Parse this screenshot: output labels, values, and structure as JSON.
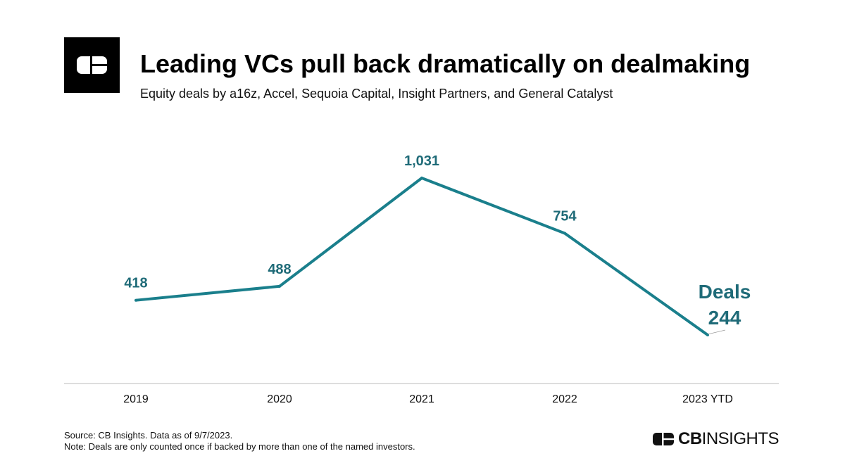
{
  "header": {
    "title": "Leading VCs pull back dramatically on dealmaking",
    "subtitle": "Equity deals by a16z, Accel, Sequoia Capital, Insight Partners, and General Catalyst"
  },
  "chart_data": {
    "type": "line",
    "categories": [
      "2019",
      "2020",
      "2021",
      "2022",
      "2023 YTD"
    ],
    "series": [
      {
        "name": "Deals",
        "values": [
          418,
          488,
          1031,
          754,
          244
        ],
        "labels": [
          "418",
          "488",
          "1,031",
          "754",
          "244"
        ]
      }
    ],
    "ylim": [
      0,
      1031
    ],
    "grid": false,
    "line_color": "#1a7f8c",
    "label_color": "#1f6b78",
    "axis_color": "#bbbbbb"
  },
  "footer": {
    "source": "Source: CB Insights. Data as of 9/7/2023.",
    "note": "Note: Deals are only counted once if backed by more than one of the named investors.",
    "brand_bold": "CB",
    "brand_rest": "INSIGHTS"
  }
}
